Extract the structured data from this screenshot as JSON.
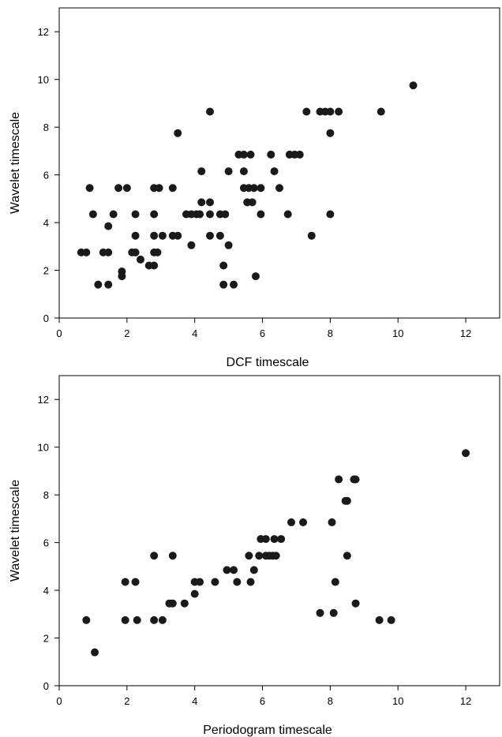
{
  "chart_data": [
    {
      "type": "scatter",
      "title": "",
      "xlabel": "DCF timescale",
      "ylabel": "Wavelet timescale",
      "xlim": [
        0,
        13
      ],
      "ylim": [
        0,
        13
      ],
      "xticks": [
        0,
        2,
        4,
        6,
        8,
        10,
        12
      ],
      "yticks": [
        0,
        2,
        4,
        6,
        8,
        10,
        12
      ],
      "grid": false,
      "marker_color": "#1a1a1a",
      "series": [
        {
          "points": [
            [
              0.65,
              2.75
            ],
            [
              0.8,
              2.75
            ],
            [
              0.9,
              5.45
            ],
            [
              1.0,
              4.35
            ],
            [
              1.15,
              1.4
            ],
            [
              1.3,
              2.75
            ],
            [
              1.45,
              2.75
            ],
            [
              1.45,
              3.85
            ],
            [
              1.45,
              1.4
            ],
            [
              1.6,
              4.35
            ],
            [
              1.75,
              5.45
            ],
            [
              1.85,
              1.75
            ],
            [
              1.85,
              1.95
            ],
            [
              2.0,
              5.45
            ],
            [
              2.15,
              2.75
            ],
            [
              2.25,
              2.75
            ],
            [
              2.25,
              3.45
            ],
            [
              2.25,
              4.35
            ],
            [
              2.4,
              2.45
            ],
            [
              2.65,
              2.2
            ],
            [
              2.8,
              2.2
            ],
            [
              2.8,
              2.75
            ],
            [
              2.8,
              3.45
            ],
            [
              2.8,
              4.35
            ],
            [
              2.8,
              5.45
            ],
            [
              2.9,
              2.75
            ],
            [
              2.95,
              5.45
            ],
            [
              3.05,
              3.45
            ],
            [
              3.35,
              3.45
            ],
            [
              3.35,
              5.45
            ],
            [
              3.5,
              3.45
            ],
            [
              3.5,
              7.75
            ],
            [
              3.75,
              4.35
            ],
            [
              3.9,
              3.05
            ],
            [
              3.9,
              4.35
            ],
            [
              4.05,
              4.35
            ],
            [
              4.15,
              4.35
            ],
            [
              4.2,
              4.85
            ],
            [
              4.2,
              6.15
            ],
            [
              4.45,
              3.45
            ],
            [
              4.45,
              4.35
            ],
            [
              4.45,
              4.85
            ],
            [
              4.45,
              8.65
            ],
            [
              4.75,
              3.45
            ],
            [
              4.75,
              4.35
            ],
            [
              4.85,
              1.4
            ],
            [
              4.85,
              2.2
            ],
            [
              4.9,
              4.35
            ],
            [
              5.0,
              3.05
            ],
            [
              5.0,
              6.15
            ],
            [
              5.15,
              1.4
            ],
            [
              5.3,
              6.85
            ],
            [
              5.45,
              6.85
            ],
            [
              5.45,
              5.45
            ],
            [
              5.45,
              6.15
            ],
            [
              5.55,
              4.85
            ],
            [
              5.6,
              5.45
            ],
            [
              5.65,
              6.85
            ],
            [
              5.7,
              4.85
            ],
            [
              5.75,
              5.45
            ],
            [
              5.8,
              1.75
            ],
            [
              5.95,
              4.35
            ],
            [
              5.95,
              5.45
            ],
            [
              6.25,
              6.85
            ],
            [
              6.35,
              6.15
            ],
            [
              6.5,
              5.45
            ],
            [
              6.75,
              4.35
            ],
            [
              6.8,
              6.85
            ],
            [
              6.95,
              6.85
            ],
            [
              7.1,
              6.85
            ],
            [
              7.3,
              8.65
            ],
            [
              7.45,
              3.45
            ],
            [
              7.7,
              8.65
            ],
            [
              7.85,
              8.65
            ],
            [
              8.0,
              4.35
            ],
            [
              8.0,
              7.75
            ],
            [
              8.0,
              8.65
            ],
            [
              8.25,
              8.65
            ],
            [
              9.5,
              8.65
            ],
            [
              10.45,
              9.75
            ]
          ]
        }
      ]
    },
    {
      "type": "scatter",
      "title": "",
      "xlabel": "Periodogram timescale",
      "ylabel": "Wavelet timescale",
      "xlim": [
        0,
        13
      ],
      "ylim": [
        0,
        13
      ],
      "xticks": [
        0,
        2,
        4,
        6,
        8,
        10,
        12
      ],
      "yticks": [
        0,
        2,
        4,
        6,
        8,
        10,
        12
      ],
      "grid": false,
      "marker_color": "#1a1a1a",
      "series": [
        {
          "points": [
            [
              0.8,
              2.75
            ],
            [
              1.05,
              1.4
            ],
            [
              1.95,
              2.75
            ],
            [
              1.95,
              4.35
            ],
            [
              2.25,
              4.35
            ],
            [
              2.3,
              2.75
            ],
            [
              2.8,
              2.75
            ],
            [
              2.8,
              5.45
            ],
            [
              3.05,
              2.75
            ],
            [
              3.25,
              3.45
            ],
            [
              3.35,
              3.45
            ],
            [
              3.35,
              5.45
            ],
            [
              3.7,
              3.45
            ],
            [
              4.0,
              3.85
            ],
            [
              4.0,
              4.35
            ],
            [
              4.15,
              4.35
            ],
            [
              4.6,
              4.35
            ],
            [
              4.95,
              4.85
            ],
            [
              5.15,
              4.85
            ],
            [
              5.25,
              4.35
            ],
            [
              5.6,
              5.45
            ],
            [
              5.65,
              4.35
            ],
            [
              5.75,
              4.85
            ],
            [
              5.9,
              5.45
            ],
            [
              5.95,
              6.15
            ],
            [
              6.1,
              5.45
            ],
            [
              6.1,
              6.15
            ],
            [
              6.2,
              5.45
            ],
            [
              6.3,
              5.45
            ],
            [
              6.35,
              6.15
            ],
            [
              6.4,
              5.45
            ],
            [
              6.55,
              6.15
            ],
            [
              6.85,
              6.85
            ],
            [
              7.2,
              6.85
            ],
            [
              7.7,
              3.05
            ],
            [
              8.05,
              6.85
            ],
            [
              8.1,
              3.05
            ],
            [
              8.15,
              4.35
            ],
            [
              8.25,
              8.65
            ],
            [
              8.45,
              7.75
            ],
            [
              8.5,
              7.75
            ],
            [
              8.5,
              5.45
            ],
            [
              8.7,
              8.65
            ],
            [
              8.75,
              8.65
            ],
            [
              8.75,
              3.45
            ],
            [
              9.45,
              2.75
            ],
            [
              9.8,
              2.75
            ],
            [
              12.0,
              9.75
            ]
          ]
        }
      ]
    }
  ]
}
